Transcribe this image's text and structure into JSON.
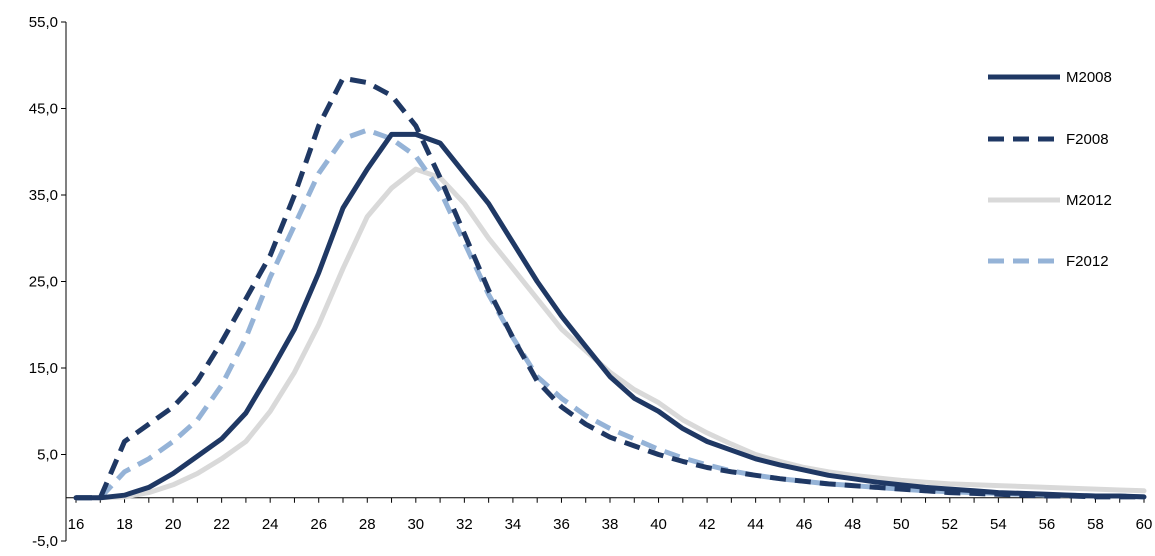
{
  "chart_data": {
    "type": "line",
    "x": [
      16,
      17,
      18,
      19,
      20,
      21,
      22,
      23,
      24,
      25,
      26,
      27,
      28,
      29,
      30,
      31,
      32,
      33,
      34,
      35,
      36,
      37,
      38,
      39,
      40,
      41,
      42,
      43,
      44,
      45,
      46,
      47,
      48,
      49,
      50,
      51,
      52,
      53,
      54,
      55,
      56,
      57,
      58,
      59,
      60
    ],
    "series": [
      {
        "name": "M2008",
        "color": "#1f3864",
        "dash": "solid",
        "values": [
          0.0,
          0.0,
          0.3,
          1.2,
          2.8,
          4.8,
          6.8,
          9.8,
          14.5,
          19.5,
          26.0,
          33.5,
          38.0,
          42.0,
          42.0,
          41.0,
          37.5,
          34.0,
          29.5,
          25.0,
          21.0,
          17.5,
          14.0,
          11.5,
          10.0,
          8.0,
          6.5,
          5.5,
          4.5,
          3.8,
          3.2,
          2.6,
          2.2,
          1.8,
          1.5,
          1.2,
          1.0,
          0.8,
          0.6,
          0.5,
          0.4,
          0.3,
          0.2,
          0.2,
          0.1
        ]
      },
      {
        "name": "F2008",
        "color": "#1f3864",
        "dash": "dashed",
        "values": [
          0.0,
          0.0,
          6.5,
          8.5,
          10.5,
          13.5,
          18.0,
          23.0,
          28.0,
          35.0,
          43.0,
          48.5,
          48.0,
          46.5,
          43.0,
          37.0,
          30.5,
          24.0,
          18.5,
          13.5,
          10.5,
          8.5,
          7.0,
          6.0,
          5.0,
          4.2,
          3.5,
          3.0,
          2.6,
          2.2,
          1.9,
          1.6,
          1.4,
          1.2,
          1.0,
          0.8,
          0.6,
          0.5,
          0.4,
          0.3,
          0.2,
          0.2,
          0.1,
          0.1,
          0.1
        ]
      },
      {
        "name": "M2012",
        "color": "#d9d9d9",
        "dash": "solid",
        "values": [
          0.0,
          0.0,
          0.1,
          0.6,
          1.5,
          2.8,
          4.5,
          6.5,
          10.0,
          14.5,
          20.0,
          26.5,
          32.5,
          35.8,
          38.0,
          37.0,
          34.0,
          30.0,
          26.5,
          23.0,
          19.5,
          17.0,
          14.5,
          12.5,
          11.0,
          9.0,
          7.5,
          6.2,
          5.0,
          4.2,
          3.5,
          3.0,
          2.6,
          2.3,
          2.0,
          1.8,
          1.6,
          1.5,
          1.4,
          1.3,
          1.2,
          1.1,
          1.0,
          0.9,
          0.8
        ]
      },
      {
        "name": "F2012",
        "color": "#95b3d7",
        "dash": "dashed",
        "values": [
          0.0,
          0.0,
          3.0,
          4.5,
          6.5,
          9.0,
          13.0,
          18.5,
          25.5,
          31.5,
          37.5,
          41.5,
          42.5,
          41.5,
          39.5,
          35.5,
          29.5,
          23.5,
          18.5,
          14.0,
          11.5,
          9.5,
          8.0,
          6.8,
          5.6,
          4.6,
          3.8,
          3.1,
          2.6,
          2.2,
          1.9,
          1.6,
          1.4,
          1.2,
          1.0,
          0.8,
          0.7,
          0.6,
          0.5,
          0.4,
          0.3,
          0.3,
          0.2,
          0.2,
          0.1
        ]
      }
    ],
    "y_ticks": [
      "55,0",
      "45,0",
      "35,0",
      "25,0",
      "15,0",
      "5,0",
      "-5,0"
    ],
    "y_tick_values": [
      55,
      45,
      35,
      25,
      15,
      5,
      -5
    ],
    "x_ticks": [
      "16",
      "18",
      "20",
      "22",
      "24",
      "26",
      "28",
      "30",
      "32",
      "34",
      "36",
      "38",
      "40",
      "42",
      "44",
      "46",
      "48",
      "50",
      "52",
      "54",
      "56",
      "58",
      "60"
    ],
    "x_tick_values": [
      16,
      18,
      20,
      22,
      24,
      26,
      28,
      30,
      32,
      34,
      36,
      38,
      40,
      42,
      44,
      46,
      48,
      50,
      52,
      54,
      56,
      58,
      60
    ],
    "ylim": [
      -5,
      55
    ],
    "xlim": [
      16,
      60
    ],
    "x_axis_crosses_at": 0,
    "grid": false,
    "legend_position": "right"
  }
}
